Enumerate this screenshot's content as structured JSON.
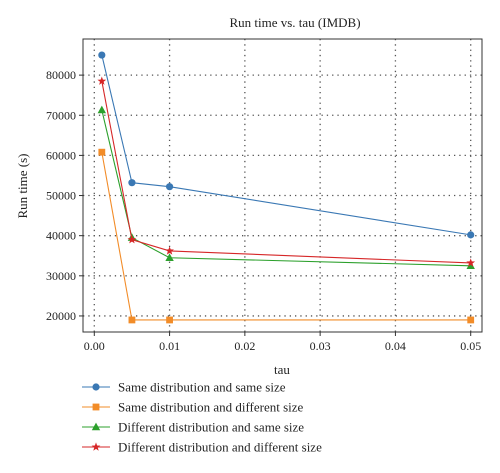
{
  "chart_data": {
    "type": "line",
    "title": "Run time vs. tau (IMDB)",
    "xlabel": "tau",
    "ylabel": "Run time (s)",
    "xlim": [
      -0.0015,
      0.0515
    ],
    "ylim": [
      16000,
      89000
    ],
    "xticks": [
      0.0,
      0.01,
      0.02,
      0.03,
      0.04,
      0.05
    ],
    "xtick_labels": [
      "0.00",
      "0.01",
      "0.02",
      "0.03",
      "0.04",
      "0.05"
    ],
    "yticks": [
      20000,
      30000,
      40000,
      50000,
      60000,
      70000,
      80000
    ],
    "ytick_labels": [
      "20000",
      "30000",
      "40000",
      "50000",
      "60000",
      "70000",
      "80000"
    ],
    "grid": true,
    "legend_position": "below",
    "x": [
      0.001,
      0.005,
      0.01,
      0.05
    ],
    "series": [
      {
        "name": "Same distribution and same size",
        "values": [
          85000,
          53200,
          52200,
          40200
        ],
        "color": "#3a78b4",
        "marker": "circle"
      },
      {
        "name": "Same distribution and different size",
        "values": [
          60800,
          19000,
          19000,
          19000
        ],
        "color": "#f28c28",
        "marker": "square"
      },
      {
        "name": "Different distribution and same size",
        "values": [
          71300,
          39500,
          34500,
          32500
        ],
        "color": "#2ca02c",
        "marker": "triangle"
      },
      {
        "name": "Different distribution and different size",
        "values": [
          78500,
          39000,
          36200,
          33200
        ],
        "color": "#d62728",
        "marker": "star"
      }
    ]
  }
}
